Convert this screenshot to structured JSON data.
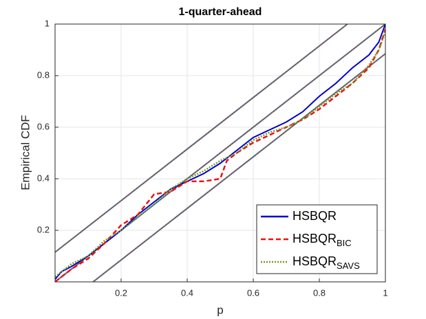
{
  "chart_data": {
    "type": "line",
    "title": "1-quarter-ahead",
    "xlabel": "p",
    "ylabel": "Empirical CDF",
    "xlim": [
      0,
      1
    ],
    "ylim": [
      0,
      1
    ],
    "xticks": [
      0.2,
      0.4,
      0.6,
      0.8,
      1
    ],
    "yticks": [
      0.2,
      0.4,
      0.6,
      0.8,
      1
    ],
    "grid": true,
    "legend": "lower right",
    "reference_lines": {
      "colors": [
        "#0072bd",
        "#d95319"
      ],
      "lines": [
        {
          "x": [
            0,
            0.885
          ],
          "values": [
            0.115,
            1
          ]
        },
        {
          "x": [
            0,
            1
          ],
          "values": [
            0,
            1
          ]
        },
        {
          "x": [
            0.115,
            1
          ],
          "values": [
            0,
            0.885
          ]
        }
      ]
    },
    "series": [
      {
        "name": "HSBQR",
        "color": "#0000d0",
        "dash": "solid",
        "x": [
          0,
          0.02,
          0.05,
          0.1,
          0.15,
          0.2,
          0.25,
          0.3,
          0.35,
          0.4,
          0.45,
          0.5,
          0.55,
          0.6,
          0.65,
          0.7,
          0.75,
          0.8,
          0.85,
          0.9,
          0.95,
          0.98,
          1
        ],
        "values": [
          0.01,
          0.04,
          0.06,
          0.1,
          0.15,
          0.2,
          0.26,
          0.31,
          0.36,
          0.39,
          0.42,
          0.46,
          0.51,
          0.56,
          0.59,
          0.62,
          0.66,
          0.72,
          0.77,
          0.83,
          0.88,
          0.93,
          1
        ]
      },
      {
        "name": "HSBQR",
        "subscript": "BIC",
        "color": "#ee1111",
        "dash": "dashed",
        "x": [
          0,
          0.05,
          0.1,
          0.15,
          0.2,
          0.25,
          0.3,
          0.35,
          0.4,
          0.45,
          0.5,
          0.52,
          0.55,
          0.6,
          0.65,
          0.7,
          0.75,
          0.8,
          0.85,
          0.9,
          0.95,
          0.98,
          1
        ],
        "values": [
          0,
          0.05,
          0.09,
          0.15,
          0.22,
          0.26,
          0.34,
          0.35,
          0.39,
          0.39,
          0.4,
          0.47,
          0.5,
          0.54,
          0.57,
          0.6,
          0.63,
          0.67,
          0.72,
          0.77,
          0.83,
          0.9,
          0.98
        ]
      },
      {
        "name": "HSBQR",
        "subscript": "SAVS",
        "color": "#779922",
        "dash": "dotted",
        "x": [
          0,
          0.05,
          0.1,
          0.15,
          0.2,
          0.25,
          0.3,
          0.35,
          0.4,
          0.45,
          0.5,
          0.55,
          0.6,
          0.65,
          0.7,
          0.75,
          0.8,
          0.85,
          0.9,
          0.95,
          0.98,
          1
        ],
        "values": [
          0.02,
          0.07,
          0.1,
          0.16,
          0.2,
          0.25,
          0.3,
          0.36,
          0.4,
          0.43,
          0.47,
          0.5,
          0.55,
          0.58,
          0.6,
          0.63,
          0.68,
          0.73,
          0.77,
          0.84,
          0.9,
          0.97
        ]
      }
    ]
  }
}
